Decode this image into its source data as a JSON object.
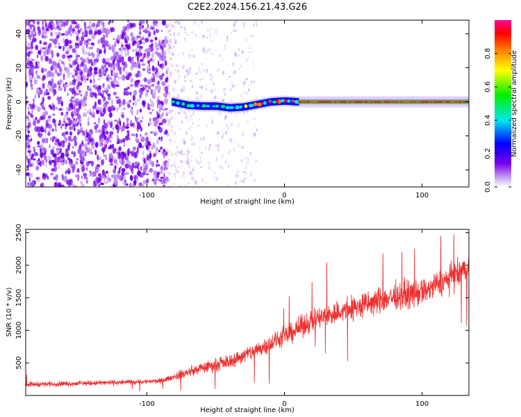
{
  "figure": {
    "title": "C2E2.2024.156.21.43.G26"
  },
  "chart_data": [
    {
      "type": "heatmap",
      "xlabel": "Height of straight line (km)",
      "ylabel": "Frequency (Hz)",
      "xlim": [
        -188,
        134
      ],
      "ylim": [
        -50,
        48
      ],
      "xticks": [
        -100,
        0,
        100
      ],
      "yticks": [
        -40,
        -20,
        0,
        20,
        40
      ],
      "colorbar": {
        "label": "Normalized spectral amplitude",
        "range": [
          0.0,
          1.0
        ],
        "ticks": [
          0.0,
          0.2,
          0.4,
          0.6,
          0.8
        ],
        "colormap": "rainbow"
      },
      "features": {
        "noise_region_x": [
          -188,
          -85
        ],
        "sparse_noise_region_x": [
          -85,
          -20
        ],
        "signal_line": {
          "x": [
            -82,
            -70,
            -60,
            -50,
            -40,
            -30,
            -20,
            -10,
            0,
            10,
            20,
            60,
            100,
            134
          ],
          "y": [
            0,
            -2,
            -2.5,
            -2.5,
            -3.5,
            -3,
            -1.5,
            0,
            0.5,
            0,
            0,
            0,
            0,
            0
          ]
        }
      }
    },
    {
      "type": "line",
      "xlabel": "Height of straight line (km)",
      "ylabel": "SNR (10 * v/v)",
      "xlim": [
        -188,
        134
      ],
      "ylim": [
        0,
        2550
      ],
      "xticks": [
        -100,
        0,
        100
      ],
      "yticks": [
        500,
        1000,
        1500,
        2000,
        2500
      ],
      "series": [
        {
          "color": "#ee3030",
          "trend": {
            "x": [
              -188,
              -160,
              -120,
              -90,
              -78,
              -60,
              -40,
              -20,
              0,
              20,
              40,
              60,
              80,
              100,
              120,
              134
            ],
            "y": [
              170,
              180,
              200,
              220,
              300,
              420,
              520,
              700,
              900,
              1150,
              1280,
              1400,
              1520,
              1580,
              1800,
              1950
            ]
          }
        }
      ]
    }
  ]
}
